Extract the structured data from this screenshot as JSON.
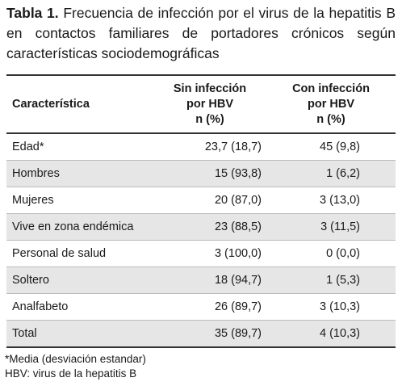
{
  "title": {
    "label": "Tabla 1.",
    "text": "Frecuencia de infección por el virus de la hepatitis B en contactos familiares de portadores crónicos según características sociodemográficas"
  },
  "table": {
    "header": [
      [
        "Característica"
      ],
      [
        "Sin infección",
        "por HBV",
        "n (%)"
      ],
      [
        "Con infección",
        "por HBV",
        "n (%)"
      ]
    ],
    "rows": [
      [
        "Edad*",
        "23,7 (18,7)",
        "45 (9,8)"
      ],
      [
        "Hombres",
        "15 (93,8)",
        "1 (6,2)"
      ],
      [
        "Mujeres",
        "20 (87,0)",
        "3 (13,0)"
      ],
      [
        "Vive en zona endémica",
        "23 (88,5)",
        "3 (11,5)"
      ],
      [
        "Personal de salud",
        "3 (100,0)",
        "0 (0,0)"
      ],
      [
        "Soltero",
        "18 (94,7)",
        "1 (5,3)"
      ],
      [
        "Analfabeto",
        "26 (89,7)",
        "3 (10,3)"
      ],
      [
        "Total",
        "35 (89,7)",
        "4 (10,3)"
      ]
    ]
  },
  "footnotes": [
    "*Media (desviación estandar)",
    "HBV: virus de la hepatitis B"
  ]
}
